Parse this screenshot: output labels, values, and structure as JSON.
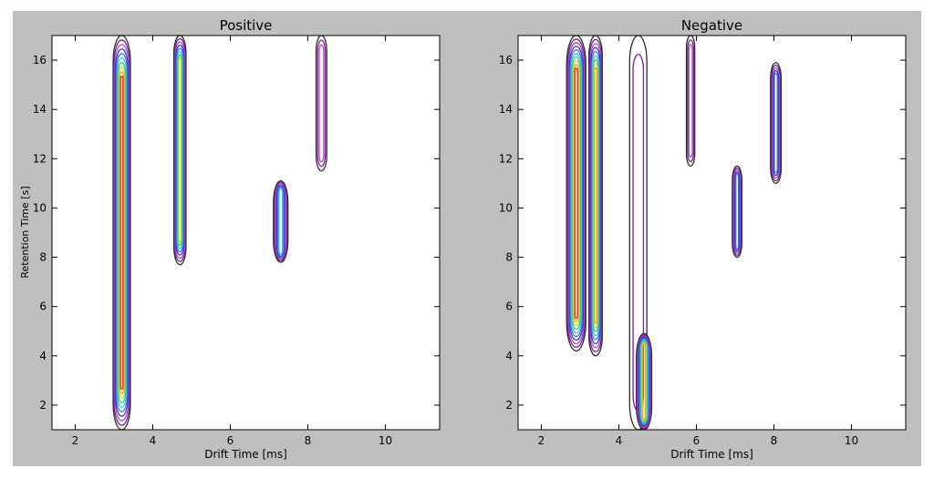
{
  "figure": {
    "background": "#bfbfbf",
    "plot_background": "#ffffff"
  },
  "chart_data": [
    {
      "type": "contour",
      "title": "Positive",
      "xlabel": "Drift Time [ms]",
      "ylabel": "Retention Time [s]",
      "xlim": [
        1.4,
        11.4
      ],
      "ylim": [
        1.0,
        17.0
      ],
      "xticks": [
        2,
        4,
        6,
        8,
        10
      ],
      "yticks": [
        2,
        4,
        6,
        8,
        10,
        12,
        14,
        16
      ],
      "grid": false,
      "features": [
        {
          "label": "band-drift-3.2",
          "x": 3.2,
          "y": [
            1.0,
            17.0
          ],
          "width": 0.35,
          "peak": 1.0
        },
        {
          "label": "band-drift-4.7",
          "x": 4.7,
          "y": [
            7.7,
            17.0
          ],
          "width": 0.22,
          "peak": 0.75
        },
        {
          "label": "blob-drift-7.3",
          "x": 7.3,
          "y": [
            7.8,
            11.1
          ],
          "width": 0.28,
          "peak": 0.6
        },
        {
          "label": "faint-drift-8.35",
          "x": 8.35,
          "y": [
            11.5,
            17.0
          ],
          "width": 0.18,
          "peak": 0.25
        }
      ]
    },
    {
      "type": "contour",
      "title": "Negative",
      "xlabel": "Drift Time [ms]",
      "ylabel": "",
      "xlim": [
        1.4,
        11.4
      ],
      "ylim": [
        1.0,
        17.0
      ],
      "xticks": [
        2,
        4,
        6,
        8,
        10
      ],
      "yticks": [
        2,
        4,
        6,
        8,
        10,
        12,
        14,
        16
      ],
      "grid": false,
      "features": [
        {
          "label": "band-drift-2.9",
          "x": 2.9,
          "y": [
            4.2,
            17.0
          ],
          "width": 0.4,
          "peak": 1.0
        },
        {
          "label": "band-drift-3.4",
          "x": 3.4,
          "y": [
            4.0,
            17.0
          ],
          "width": 0.25,
          "peak": 0.85
        },
        {
          "label": "band-drift-4.5",
          "x": 4.5,
          "y": [
            1.0,
            17.0
          ],
          "width": 0.35,
          "peak": 0.2
        },
        {
          "label": "blob-drift-4.65",
          "x": 4.65,
          "y": [
            1.0,
            4.9
          ],
          "width": 0.3,
          "peak": 0.85
        },
        {
          "label": "blob-drift-5.85",
          "x": 5.85,
          "y": [
            11.7,
            17.0
          ],
          "width": 0.12,
          "peak": 0.3
        },
        {
          "label": "blob-drift-7.05",
          "x": 7.05,
          "y": [
            8.0,
            11.7
          ],
          "width": 0.15,
          "peak": 0.5
        },
        {
          "label": "blob-drift-8.05",
          "x": 8.05,
          "y": [
            11.0,
            15.9
          ],
          "width": 0.18,
          "peak": 0.45
        }
      ]
    }
  ]
}
